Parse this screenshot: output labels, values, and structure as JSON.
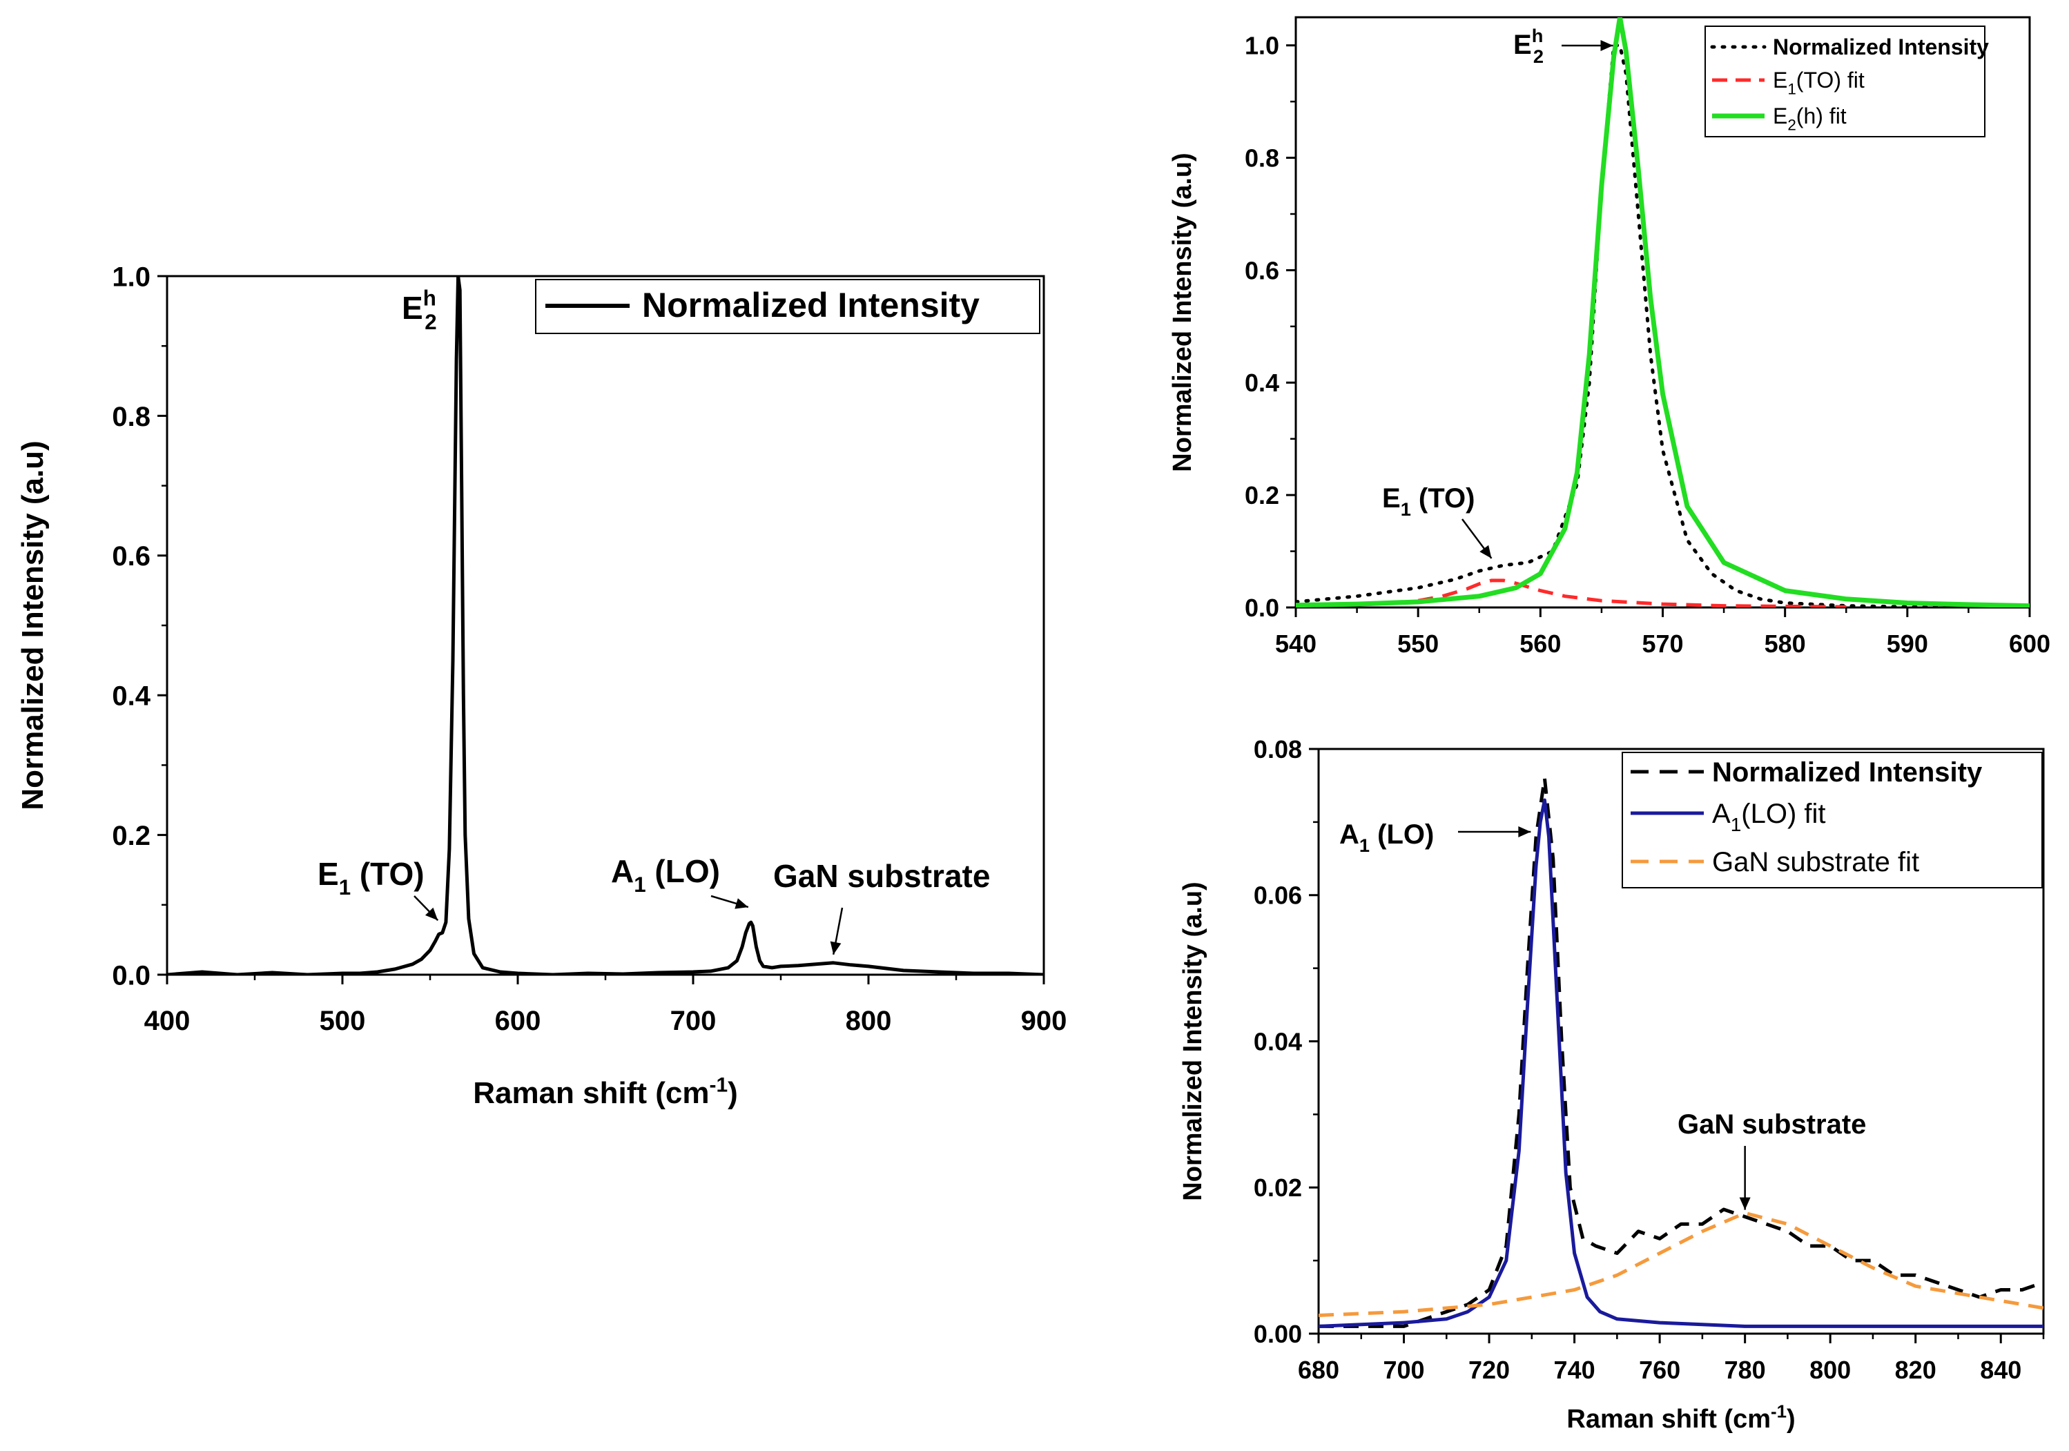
{
  "chart_data": [
    {
      "panel": "left",
      "type": "line",
      "xlabel": "Raman shift (cm-1)",
      "xlabel_main": "Raman shift (cm",
      "xlabel_sup": "-1",
      "xlabel_close": ")",
      "ylabel": "Normalized Intensity (a.u)",
      "xlim": [
        400,
        900
      ],
      "ylim": [
        0,
        1.0
      ],
      "xticks": [
        "400",
        "500",
        "600",
        "700",
        "800",
        "900"
      ],
      "yticks": [
        "0.0",
        "0.2",
        "0.4",
        "0.6",
        "0.8",
        "1.0"
      ],
      "legend": [
        "Normalized Intensity"
      ],
      "legend_position": "top-right",
      "series": [
        {
          "name": "Normalized Intensity",
          "color": "#000000",
          "style": "solid",
          "x": [
            400,
            420,
            440,
            460,
            480,
            500,
            510,
            520,
            530,
            540,
            545,
            550,
            553,
            555,
            557,
            559,
            561,
            563,
            565,
            566,
            567,
            568,
            569,
            570,
            572,
            575,
            580,
            590,
            600,
            620,
            640,
            660,
            680,
            700,
            710,
            720,
            725,
            728,
            730,
            732,
            733,
            734,
            736,
            738,
            740,
            745,
            750,
            760,
            770,
            780,
            790,
            800,
            820,
            840,
            860,
            880,
            900
          ],
          "y": [
            0.0,
            0.004,
            0.0,
            0.003,
            0.0,
            0.002,
            0.002,
            0.004,
            0.008,
            0.015,
            0.022,
            0.035,
            0.048,
            0.058,
            0.06,
            0.075,
            0.18,
            0.45,
            0.88,
            1.0,
            0.98,
            0.7,
            0.4,
            0.2,
            0.08,
            0.03,
            0.01,
            0.004,
            0.002,
            0.0,
            0.002,
            0.001,
            0.003,
            0.004,
            0.005,
            0.01,
            0.02,
            0.04,
            0.06,
            0.073,
            0.075,
            0.07,
            0.04,
            0.02,
            0.012,
            0.01,
            0.012,
            0.013,
            0.015,
            0.017,
            0.014,
            0.012,
            0.006,
            0.004,
            0.002,
            0.002,
            0.0
          ]
        }
      ],
      "annotations": [
        {
          "text": "E",
          "sup": "h",
          "sub": "2",
          "x": 567,
          "y": 1.0
        },
        {
          "text": "E",
          "sub": "1",
          "rest": " (TO)",
          "x": 556,
          "y": 0.06
        },
        {
          "text": "A",
          "sub": "1",
          "rest": " (LO)",
          "x": 733,
          "y": 0.075
        },
        {
          "text": "GaN substrate",
          "x": 780,
          "y": 0.015
        }
      ]
    },
    {
      "panel": "top-right",
      "type": "line",
      "xlabel": "",
      "ylabel": "Normalized Intensity (a.u)",
      "xlim": [
        540,
        600
      ],
      "ylim": [
        0,
        1.05
      ],
      "xticks": [
        "540",
        "550",
        "560",
        "570",
        "580",
        "590",
        "600"
      ],
      "yticks": [
        "0.0",
        "0.2",
        "0.4",
        "0.6",
        "0.8",
        "1.0"
      ],
      "legend": [
        "Normalized Intensity",
        "E1(TO) fit",
        "E2(h) fit"
      ],
      "legend_position": "top-right",
      "series": [
        {
          "name": "Normalized Intensity",
          "color": "#000000",
          "style": "dotted",
          "x": [
            540,
            545,
            550,
            553,
            555,
            557,
            559,
            561,
            563,
            564,
            565,
            566,
            566.5,
            567,
            568,
            569,
            570,
            572,
            574,
            576,
            578,
            580,
            585,
            590,
            595,
            600
          ],
          "y": [
            0.01,
            0.02,
            0.035,
            0.05,
            0.065,
            0.075,
            0.08,
            0.1,
            0.22,
            0.4,
            0.75,
            1.0,
            1.0,
            0.95,
            0.7,
            0.45,
            0.28,
            0.12,
            0.06,
            0.03,
            0.015,
            0.008,
            0.003,
            0.001,
            0.0,
            0.0
          ]
        },
        {
          "name": "E1(TO) fit",
          "color": "#ff2a2a",
          "style": "dashed",
          "x": [
            550,
            552,
            554,
            555,
            556,
            557,
            558,
            560,
            562,
            565,
            570,
            575,
            580,
            585
          ],
          "y": [
            0.012,
            0.02,
            0.033,
            0.042,
            0.048,
            0.048,
            0.043,
            0.03,
            0.02,
            0.012,
            0.006,
            0.003,
            0.002,
            0.001
          ]
        },
        {
          "name": "E2(h) fit",
          "color": "#22dd22",
          "style": "solid",
          "x": [
            540,
            545,
            550,
            555,
            558,
            560,
            562,
            563,
            564,
            565,
            566,
            566.5,
            567,
            568,
            569,
            570,
            572,
            575,
            580,
            585,
            590,
            595,
            600
          ],
          "y": [
            0.004,
            0.006,
            0.01,
            0.02,
            0.035,
            0.06,
            0.14,
            0.24,
            0.45,
            0.75,
            0.98,
            1.05,
            0.99,
            0.78,
            0.55,
            0.38,
            0.18,
            0.08,
            0.03,
            0.015,
            0.008,
            0.005,
            0.003
          ]
        }
      ],
      "annotations": [
        {
          "text": "E",
          "sup": "h",
          "sub": "2",
          "x": 566.5,
          "y": 1.0
        },
        {
          "text": "E",
          "sub": "1",
          "rest": " (TO)",
          "x": 556,
          "y": 0.075
        }
      ]
    },
    {
      "panel": "bottom-right",
      "type": "line",
      "xlabel": "Raman shift (cm-1)",
      "xlabel_main": "Raman shift (cm",
      "xlabel_sup": "-1",
      "xlabel_close": ")",
      "ylabel": "Normalized Intensity (a.u)",
      "xlim": [
        680,
        850
      ],
      "ylim": [
        0,
        0.08
      ],
      "xticks": [
        "680",
        "700",
        "720",
        "740",
        "760",
        "780",
        "800",
        "820",
        "840"
      ],
      "yticks": [
        "0.00",
        "0.02",
        "0.04",
        "0.06",
        "0.08"
      ],
      "legend": [
        "Normalized Intensity",
        "A1(LO) fit",
        "GaN substrate fit"
      ],
      "legend_position": "top-right",
      "series": [
        {
          "name": "Normalized Intensity",
          "color": "#000000",
          "style": "dashed",
          "x": [
            680,
            690,
            700,
            710,
            715,
            720,
            724,
            727,
            729,
            731,
            733,
            735,
            737,
            739,
            742,
            745,
            750,
            755,
            760,
            765,
            770,
            775,
            780,
            785,
            790,
            795,
            800,
            805,
            810,
            815,
            820,
            825,
            830,
            835,
            840,
            845,
            850
          ],
          "y": [
            0.001,
            0.001,
            0.001,
            0.003,
            0.004,
            0.006,
            0.012,
            0.03,
            0.05,
            0.068,
            0.076,
            0.065,
            0.04,
            0.02,
            0.013,
            0.012,
            0.011,
            0.014,
            0.013,
            0.015,
            0.015,
            0.017,
            0.016,
            0.015,
            0.014,
            0.012,
            0.012,
            0.01,
            0.01,
            0.008,
            0.008,
            0.007,
            0.006,
            0.005,
            0.006,
            0.006,
            0.007
          ]
        },
        {
          "name": "A1(LO) fit",
          "color": "#1a1a9c",
          "style": "solid",
          "x": [
            680,
            700,
            710,
            715,
            720,
            724,
            727,
            729,
            731,
            732,
            733,
            734,
            736,
            738,
            740,
            743,
            746,
            750,
            760,
            780,
            800,
            850
          ],
          "y": [
            0.001,
            0.0015,
            0.002,
            0.003,
            0.005,
            0.01,
            0.025,
            0.045,
            0.064,
            0.07,
            0.073,
            0.068,
            0.045,
            0.022,
            0.011,
            0.005,
            0.003,
            0.002,
            0.0015,
            0.001,
            0.001,
            0.001
          ]
        },
        {
          "name": "GaN substrate fit",
          "color": "#f59a3c",
          "style": "dashed",
          "x": [
            680,
            700,
            720,
            740,
            750,
            760,
            770,
            780,
            790,
            800,
            810,
            820,
            830,
            840,
            850
          ],
          "y": [
            0.0025,
            0.003,
            0.004,
            0.006,
            0.008,
            0.011,
            0.014,
            0.0165,
            0.015,
            0.012,
            0.009,
            0.0065,
            0.0055,
            0.0045,
            0.0035
          ]
        }
      ],
      "annotations": [
        {
          "text": "A",
          "sub": "1",
          "rest": " (LO)",
          "x": 733,
          "y": 0.072
        },
        {
          "text": "GaN substrate",
          "x": 780,
          "y": 0.016
        }
      ]
    }
  ]
}
